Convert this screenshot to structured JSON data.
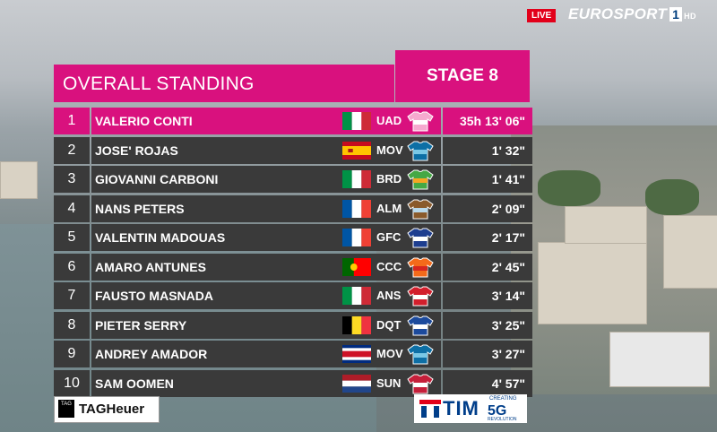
{
  "broadcast": {
    "live_label": "LIVE",
    "channel": "EUROSPORT",
    "channel_number": "1",
    "hd_label": "HD",
    "colors": {
      "accent": "#d9117e",
      "row": "#3a3a3a",
      "live": "#e2001a"
    }
  },
  "standings": {
    "title": "OVERALL STANDING",
    "stage_label": "STAGE 8",
    "rows": [
      {
        "rank": "1",
        "name": "VALERIO CONTI",
        "country": "italy",
        "team": "UAD",
        "jersey": "pink-jersey-icon",
        "time": "35h 13' 06\""
      },
      {
        "rank": "2",
        "name": "JOSE' ROJAS",
        "country": "spain",
        "team": "MOV",
        "jersey": "movistar-jersey-icon",
        "time": "1' 32\""
      },
      {
        "rank": "3",
        "name": "GIOVANNI CARBONI",
        "country": "italy",
        "team": "BRD",
        "jersey": "bardiani-jersey-icon",
        "time": "1' 41\""
      },
      {
        "rank": "4",
        "name": "NANS PETERS",
        "country": "france",
        "team": "ALM",
        "jersey": "ag2r-jersey-icon",
        "time": "2' 09\""
      },
      {
        "rank": "5",
        "name": "VALENTIN MADOUAS",
        "country": "france",
        "team": "GFC",
        "jersey": "groupama-jersey-icon",
        "time": "2' 17\""
      },
      {
        "rank": "6",
        "name": "AMARO ANTUNES",
        "country": "portugal",
        "team": "CCC",
        "jersey": "ccc-jersey-icon",
        "time": "2' 45\""
      },
      {
        "rank": "7",
        "name": "FAUSTO MASNADA",
        "country": "italy",
        "team": "ANS",
        "jersey": "androni-jersey-icon",
        "time": "3' 14\""
      },
      {
        "rank": "8",
        "name": "PIETER SERRY",
        "country": "belgium",
        "team": "DQT",
        "jersey": "deceuninck-jersey-icon",
        "time": "3' 25\""
      },
      {
        "rank": "9",
        "name": "ANDREY AMADOR",
        "country": "costa-rica",
        "team": "MOV",
        "jersey": "movistar-jersey-icon",
        "time": "3' 27\""
      },
      {
        "rank": "10",
        "name": "SAM OOMEN",
        "country": "netherlands",
        "team": "SUN",
        "jersey": "sunweb-jersey-icon",
        "time": "4' 57\""
      }
    ]
  },
  "sponsors": {
    "tagheuer_badge": "TAG",
    "tagheuer": "TAGHeuer",
    "tim": "TIM",
    "tim_creating": "CREATING",
    "tim_5g": "5G",
    "tim_revolution": "REVOLUTION"
  }
}
